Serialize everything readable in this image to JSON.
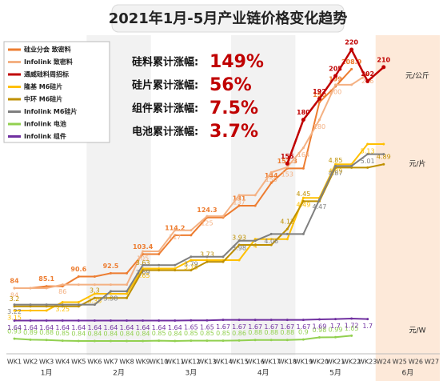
{
  "chart_data": {
    "type": "line",
    "title": "2021年1月-5月产业链价格变化趋势",
    "categories": [
      "WK1",
      "WK2",
      "WK3",
      "WK4",
      "WK5",
      "WK6",
      "WK7",
      "WK8",
      "WK9",
      "WK10",
      "WK11",
      "WK12",
      "WK13",
      "WK14",
      "WK15",
      "WK16",
      "WK17",
      "WK18",
      "WK19",
      "WK20",
      "WK21",
      "WK22",
      "WK23",
      "W24",
      "W25",
      "W26",
      "W27"
    ],
    "months": [
      "1月",
      "1月",
      "1月",
      "1月",
      "1月",
      "2月",
      "2月",
      "2月",
      "2月",
      "3月",
      "3月",
      "3月",
      "3月",
      "3月",
      "4月",
      "4月",
      "4月",
      "4月",
      "5月",
      "5月",
      "5月",
      "5月",
      "5月",
      "6月",
      "6月",
      "6月",
      "6月"
    ],
    "highlight_month": "6月",
    "units": {
      "y": "元/公斤",
      "y2": "元/片",
      "y3": "元/W"
    },
    "annotations": [
      {
        "label": "硅料累计涨幅:",
        "value": "149%"
      },
      {
        "label": "硅片累计涨幅:",
        "value": "56%"
      },
      {
        "label": "组件累计涨幅:",
        "value": "7.5%"
      },
      {
        "label": "电池累计涨幅:",
        "value": "3.7%"
      }
    ],
    "series": [
      {
        "name": "硅业分会 致密料",
        "color": "#ed7d31",
        "axis": "y",
        "data_labels": "changes",
        "values": [
          84,
          84,
          85.1,
          85.1,
          90.6,
          90.6,
          92.5,
          92.5,
          103.4,
          103.4,
          114.2,
          114.2,
          124.3,
          124.3,
          131,
          131,
          144,
          152.3,
          152.3,
          190,
          199,
          208.9,
          null,
          null,
          null,
          null,
          null
        ]
      },
      {
        "name": "Infolink 致密料",
        "color": "#f4b183",
        "axis": "y",
        "data_labels": "changes",
        "values": [
          84,
          84,
          84,
          86,
          86,
          86,
          86,
          86,
          105,
          105,
          117,
          117,
          125,
          125,
          137,
          137,
          150,
          153,
          164,
          180,
          200,
          200,
          206,
          null,
          null,
          null,
          null
        ]
      },
      {
        "name": "通威硅料周招标",
        "color": "#c00000",
        "axis": "y",
        "data_labels": "changes",
        "values": [
          null,
          null,
          null,
          null,
          null,
          null,
          null,
          null,
          null,
          null,
          null,
          null,
          null,
          null,
          null,
          null,
          null,
          155,
          180,
          192,
          205,
          220,
          202,
          210,
          null,
          null,
          null
        ]
      },
      {
        "name": "隆基 M6硅片",
        "color": "#ffc000",
        "axis": "y2",
        "data_labels": "changes",
        "values": [
          3.15,
          3.15,
          3.15,
          3.25,
          3.25,
          3.35,
          3.35,
          3.35,
          3.65,
          3.65,
          3.65,
          3.75,
          3.75,
          3.75,
          3.75,
          4.0,
          4.0,
          4.0,
          4.49,
          4.49,
          4.89,
          4.89,
          5.13,
          5.13,
          null,
          null,
          null
        ]
      },
      {
        "name": "中环 M6硅片",
        "color": "#bf9000",
        "axis": "y2",
        "data_labels": "changes",
        "values": [
          3.2,
          3.2,
          3.2,
          3.2,
          3.2,
          3.3,
          3.3,
          3.3,
          3.63,
          3.63,
          3.63,
          3.63,
          3.73,
          3.73,
          3.93,
          3.93,
          3.93,
          4.12,
          4.45,
          4.45,
          4.85,
          4.85,
          4.85,
          4.89,
          null,
          null,
          null
        ]
      },
      {
        "name": "Infolink M6硅片",
        "color": "#7f7f7f",
        "axis": "y2",
        "data_labels": "changes",
        "values": [
          3.22,
          3.22,
          3.22,
          3.22,
          3.22,
          3.22,
          3.38,
          3.38,
          3.69,
          3.69,
          3.69,
          3.79,
          3.79,
          3.79,
          3.98,
          3.98,
          4.06,
          4.06,
          4.06,
          4.47,
          4.87,
          4.87,
          5.01,
          5.01,
          null,
          null,
          null
        ]
      },
      {
        "name": "Infolink 电池",
        "color": "#92d050",
        "axis": "y3",
        "data_labels": "all",
        "values": [
          0.93,
          0.89,
          0.88,
          0.85,
          0.84,
          0.84,
          0.84,
          0.84,
          0.84,
          0.85,
          0.84,
          0.85,
          0.85,
          0.85,
          0.86,
          0.88,
          0.88,
          0.88,
          0.9,
          0.98,
          0.99,
          1.05,
          null,
          null,
          null,
          null,
          null
        ]
      },
      {
        "name": "Infolink 组件",
        "color": "#7030a0",
        "axis": "y3",
        "data_labels": "all",
        "values": [
          1.64,
          1.64,
          1.64,
          1.64,
          1.64,
          1.64,
          1.64,
          1.64,
          1.64,
          1.64,
          1.64,
          1.65,
          1.65,
          1.67,
          1.67,
          1.67,
          1.67,
          1.67,
          1.67,
          1.69,
          1.7,
          1.72,
          1.7,
          null,
          null,
          null,
          null
        ]
      }
    ]
  }
}
